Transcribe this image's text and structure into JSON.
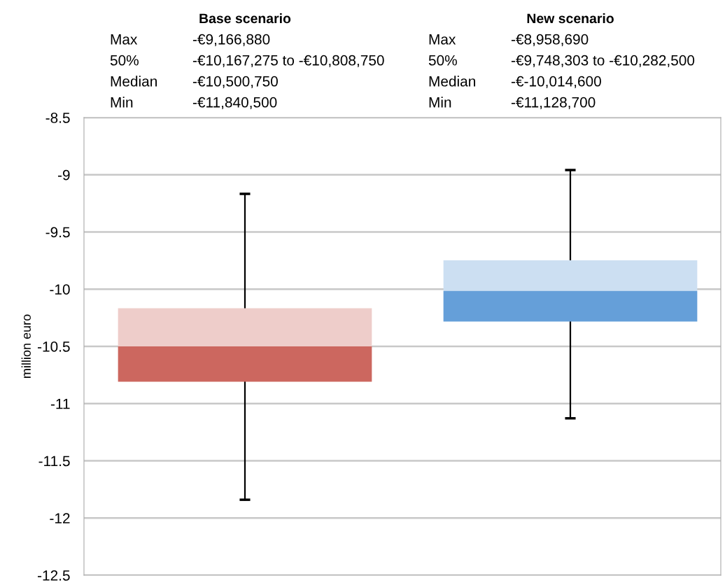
{
  "chart_data": {
    "type": "box",
    "categories": [
      "Base scenario",
      "New scenario"
    ],
    "colors": [
      "#cc675f",
      "#659fd9"
    ],
    "boxes": [
      {
        "low": -11.8405,
        "q1": -10.80875,
        "median": -10.50075,
        "q3": -10.167275,
        "high": -9.16688
      },
      {
        "low": -11.1287,
        "q1": -10.2825,
        "median": -10.0146,
        "q3": -9.748303,
        "high": -8.95869
      }
    ],
    "ylabel": "million euro",
    "ylim": [
      -12.5,
      -8.5
    ],
    "yticks": [
      -12.5,
      -12,
      -11.5,
      -11,
      -10.5,
      -10,
      -9.5,
      -9,
      -8.5
    ],
    "grid": "y",
    "tick_labels": "y",
    "annotations": [
      "Max",
      "-€9,166,880",
      "50%",
      "-€10,167,275 to -€10,808,750",
      "Median",
      "-€10,500,750",
      "Min",
      "-€11,840,500",
      "Max",
      "-€8,958,690",
      "50%",
      "-€9,748,303 to -€10,282,500",
      "Median",
      "-€-10,014,600",
      "Min",
      "-€11,128,700"
    ]
  }
}
